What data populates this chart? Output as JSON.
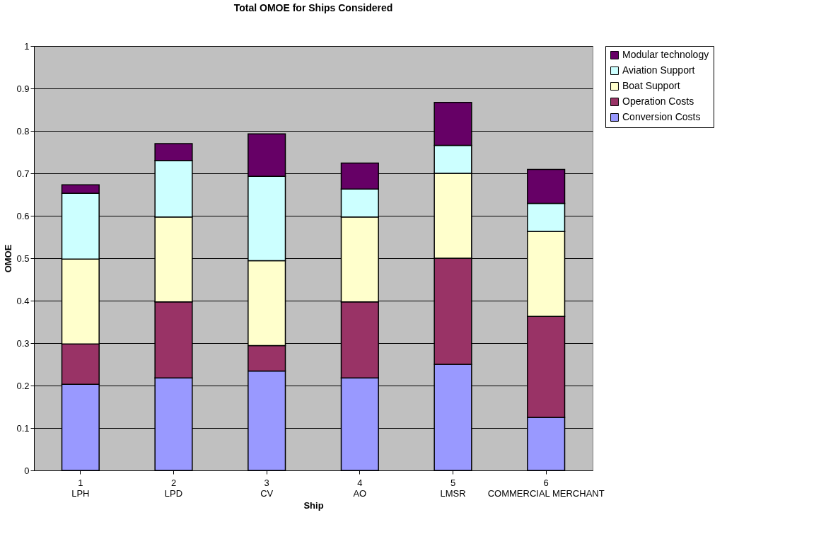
{
  "chart_data": {
    "type": "bar",
    "title": "Total OMOE for Ships Considered",
    "xlabel": "Ship",
    "ylabel": "OMOE",
    "categories": [
      "1\nLPH",
      "2\nLPD",
      "3\nCV",
      "4\nAO",
      "5\nLMSR",
      "6\nCOMMERCIAL MERCHANT"
    ],
    "stacked": true,
    "series": [
      {
        "name": "Conversion Costs",
        "color": "#9999ff",
        "values": [
          0.203,
          0.218,
          0.234,
          0.218,
          0.25,
          0.125
        ]
      },
      {
        "name": "Operation Costs",
        "color": "#993366",
        "values": [
          0.095,
          0.179,
          0.06,
          0.179,
          0.25,
          0.238
        ]
      },
      {
        "name": "Boat Support",
        "color": "#ffffcc",
        "values": [
          0.2,
          0.2,
          0.2,
          0.2,
          0.2,
          0.2
        ]
      },
      {
        "name": "Aviation Support",
        "color": "#ccffff",
        "values": [
          0.155,
          0.133,
          0.199,
          0.066,
          0.066,
          0.066
        ]
      },
      {
        "name": "Modular technology",
        "color": "#660066",
        "values": [
          0.02,
          0.04,
          0.1,
          0.061,
          0.101,
          0.08
        ]
      }
    ],
    "ylim": [
      0,
      1
    ],
    "yticks": [
      0,
      0.1,
      0.2,
      0.3,
      0.4,
      0.5,
      0.6,
      0.7,
      0.8,
      0.9,
      1
    ],
    "grid": "y",
    "legend": "right"
  }
}
